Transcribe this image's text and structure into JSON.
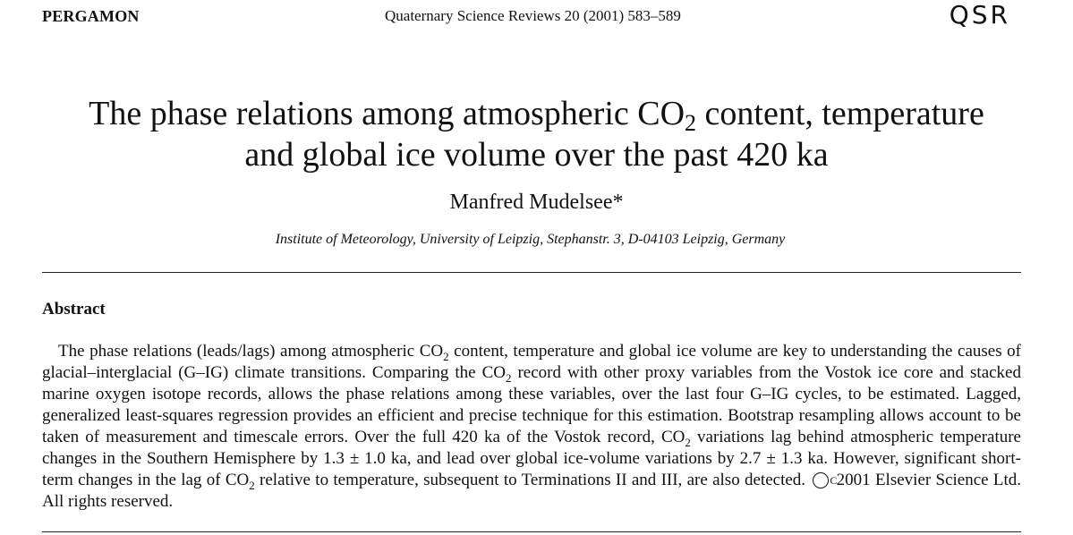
{
  "header": {
    "publisher": "PERGAMON",
    "journal_citation": "Quaternary Science Reviews 20 (2001) 583–589",
    "journal_logo": "QSR"
  },
  "title": {
    "line1_before_sub": "The phase relations among atmospheric CO",
    "line1_sub": "2",
    "line1_after_sub": " content, temperature",
    "line2": "and global ice volume over the past 420 ka"
  },
  "author": "Manfred Mudelsee*",
  "affiliation": "Institute of Meteorology, University of Leipzig, Stephanstr. 3, D-04103 Leipzig, Germany",
  "abstract": {
    "heading": "Abstract",
    "part1": "The phase relations (leads/lags) among atmospheric CO",
    "sub1": "2",
    "part2": " content, temperature and global ice volume are key to understanding the causes of glacial–interglacial (G–IG) climate transitions. Comparing the CO",
    "sub2": "2",
    "part3": " record with other proxy variables from the Vostok ice core and stacked marine oxygen isotope records, allows the phase relations among these variables, over the last four G–IG cycles, to be estimated. Lagged, generalized least-squares regression provides an efficient and precise technique for this estimation. Bootstrap resampling allows account to be taken of measurement and timescale errors. Over the full 420 ka of the Vostok record, CO",
    "sub3": "2",
    "part4": " variations lag behind atmospheric temperature changes in the Southern Hemisphere by 1.3 ± 1.0 ka, and lead over global ice-volume variations by 2.7 ± 1.3 ka. However, significant short-term changes in the lag of CO",
    "sub4": "2",
    "part5": " relative to temperature, subsequent to Terminations II and III, are also detected.",
    "copyright_symbol": "C",
    "copyright_text": " 2001 Elsevier Science Ltd. All rights reserved."
  }
}
